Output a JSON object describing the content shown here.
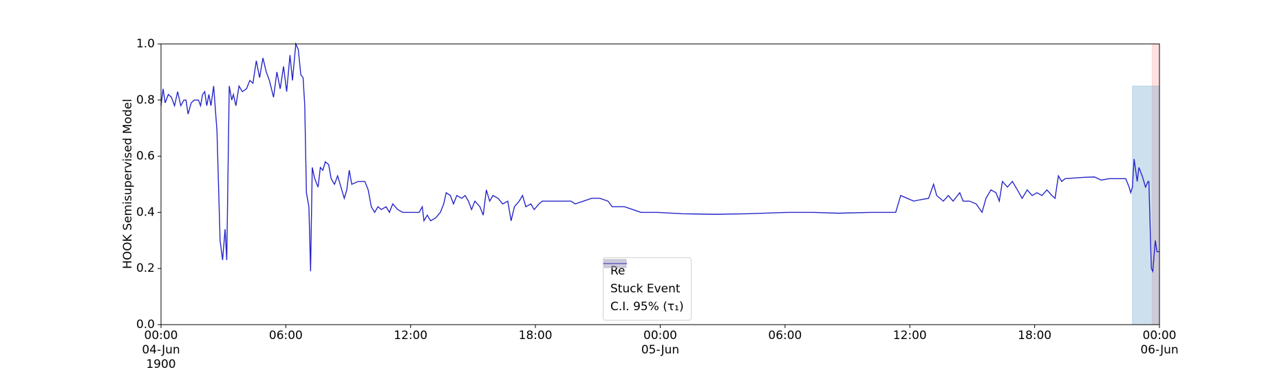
{
  "chart_data": {
    "type": "line",
    "ylabel": "HOOK Semisupervised Model",
    "x": [
      0,
      0.1,
      0.2,
      0.35,
      0.5,
      0.65,
      0.8,
      0.95,
      1.1,
      1.2,
      1.3,
      1.45,
      1.6,
      1.8,
      1.9,
      2.0,
      2.1,
      2.2,
      2.3,
      2.4,
      2.53,
      2.69,
      2.84,
      2.96,
      3.08,
      3.16,
      3.28,
      3.4,
      3.48,
      3.6,
      3.75,
      3.91,
      4.11,
      4.27,
      4.42,
      4.58,
      4.74,
      4.9,
      5.06,
      5.21,
      5.41,
      5.57,
      5.73,
      5.89,
      6.04,
      6.2,
      6.32,
      6.48,
      6.6,
      6.72,
      6.83,
      6.91,
      6.99,
      7.11,
      7.19,
      7.27,
      7.39,
      7.55,
      7.66,
      7.78,
      7.9,
      8.06,
      8.18,
      8.34,
      8.49,
      8.65,
      8.81,
      8.93,
      9.05,
      9.17,
      9.48,
      9.8,
      9.96,
      10.11,
      10.27,
      10.43,
      10.59,
      10.82,
      10.98,
      11.14,
      11.38,
      11.62,
      12.01,
      12.41,
      12.56,
      12.64,
      12.8,
      12.96,
      13.2,
      13.43,
      13.59,
      13.71,
      13.91,
      14.06,
      14.22,
      14.46,
      14.62,
      14.78,
      14.93,
      15.09,
      15.33,
      15.49,
      15.64,
      15.8,
      15.96,
      16.2,
      16.43,
      16.67,
      16.83,
      16.99,
      17.22,
      17.38,
      17.54,
      17.78,
      17.94,
      18.17,
      18.33,
      19.12,
      19.71,
      19.91,
      20.31,
      20.7,
      21.1,
      21.49,
      21.69,
      22.28,
      22.68,
      23.07,
      23.86,
      25.05,
      26.63,
      28.21,
      30.18,
      31.37,
      32.55,
      34.13,
      35.32,
      35.56,
      35.87,
      36.19,
      36.5,
      36.9,
      37.14,
      37.29,
      37.61,
      37.85,
      38.08,
      38.4,
      38.56,
      38.87,
      39.19,
      39.47,
      39.66,
      39.9,
      40.14,
      40.3,
      40.45,
      40.69,
      40.93,
      41.17,
      41.4,
      41.64,
      41.88,
      42.11,
      42.35,
      42.59,
      42.83,
      42.98,
      43.14,
      43.3,
      43.46,
      44.4,
      44.88,
      45.2,
      45.59,
      45.99,
      46.38,
      46.54,
      46.62,
      46.7,
      46.78,
      46.93,
      47.01,
      47.17,
      47.33,
      47.45,
      47.49,
      47.61,
      47.68,
      47.8,
      47.88,
      48.0
    ],
    "series": [
      {
        "name": "Re",
        "color": "#2323c8",
        "values": [
          0.78,
          0.84,
          0.79,
          0.82,
          0.81,
          0.78,
          0.83,
          0.78,
          0.8,
          0.8,
          0.75,
          0.79,
          0.8,
          0.8,
          0.78,
          0.82,
          0.83,
          0.78,
          0.82,
          0.78,
          0.85,
          0.69,
          0.3,
          0.23,
          0.34,
          0.23,
          0.85,
          0.8,
          0.82,
          0.78,
          0.85,
          0.83,
          0.84,
          0.87,
          0.86,
          0.94,
          0.88,
          0.95,
          0.9,
          0.87,
          0.81,
          0.9,
          0.84,
          0.92,
          0.83,
          0.96,
          0.87,
          1.0,
          0.98,
          0.89,
          0.88,
          0.78,
          0.47,
          0.42,
          0.19,
          0.56,
          0.52,
          0.49,
          0.56,
          0.55,
          0.58,
          0.57,
          0.52,
          0.5,
          0.53,
          0.49,
          0.45,
          0.48,
          0.55,
          0.5,
          0.51,
          0.51,
          0.48,
          0.42,
          0.4,
          0.42,
          0.41,
          0.42,
          0.4,
          0.43,
          0.41,
          0.4,
          0.4,
          0.4,
          0.42,
          0.37,
          0.39,
          0.37,
          0.38,
          0.4,
          0.43,
          0.47,
          0.46,
          0.43,
          0.46,
          0.45,
          0.46,
          0.44,
          0.41,
          0.44,
          0.42,
          0.39,
          0.48,
          0.44,
          0.46,
          0.45,
          0.43,
          0.44,
          0.37,
          0.42,
          0.44,
          0.46,
          0.42,
          0.43,
          0.41,
          0.43,
          0.44,
          0.44,
          0.44,
          0.43,
          0.44,
          0.45,
          0.45,
          0.44,
          0.42,
          0.42,
          0.41,
          0.4,
          0.4,
          0.395,
          0.393,
          0.395,
          0.4,
          0.4,
          0.397,
          0.4,
          0.4,
          0.46,
          0.45,
          0.44,
          0.445,
          0.45,
          0.5,
          0.46,
          0.44,
          0.46,
          0.44,
          0.47,
          0.44,
          0.44,
          0.43,
          0.4,
          0.45,
          0.48,
          0.47,
          0.44,
          0.51,
          0.49,
          0.51,
          0.48,
          0.45,
          0.48,
          0.46,
          0.47,
          0.46,
          0.48,
          0.46,
          0.45,
          0.53,
          0.51,
          0.52,
          0.525,
          0.526,
          0.515,
          0.52,
          0.52,
          0.52,
          0.49,
          0.47,
          0.49,
          0.59,
          0.51,
          0.56,
          0.53,
          0.49,
          0.51,
          0.51,
          0.2,
          0.19,
          0.3,
          0.26,
          0.26
        ]
      }
    ],
    "spans": [
      {
        "name": "Stuck Event",
        "color": "#ff9a9a",
        "x": [
          47.65,
          48
        ],
        "y": [
          0,
          1
        ]
      },
      {
        "name": "C.I. 95% (τ₁)",
        "color": "#5b97c8",
        "x": [
          46.7,
          48
        ],
        "y": [
          0,
          0.85
        ]
      }
    ],
    "xlim": [
      0,
      48
    ],
    "xticks": [
      {
        "value": 0,
        "label": "00:00\n04-Jun\n1900"
      },
      {
        "value": 6,
        "label": "06:00"
      },
      {
        "value": 12,
        "label": "12:00"
      },
      {
        "value": 18,
        "label": "18:00"
      },
      {
        "value": 24,
        "label": "00:00\n05-Jun"
      },
      {
        "value": 30,
        "label": "06:00"
      },
      {
        "value": 36,
        "label": "12:00"
      },
      {
        "value": 42,
        "label": "18:00"
      },
      {
        "value": 48,
        "label": "00:00\n06-Jun"
      }
    ],
    "ylim": [
      0,
      1
    ],
    "yticks": [
      {
        "value": 0,
        "label": "0.0"
      },
      0.2,
      0.4,
      0.6,
      0.8,
      {
        "value": 1,
        "label": "1.0"
      }
    ],
    "legend": "lower center"
  }
}
